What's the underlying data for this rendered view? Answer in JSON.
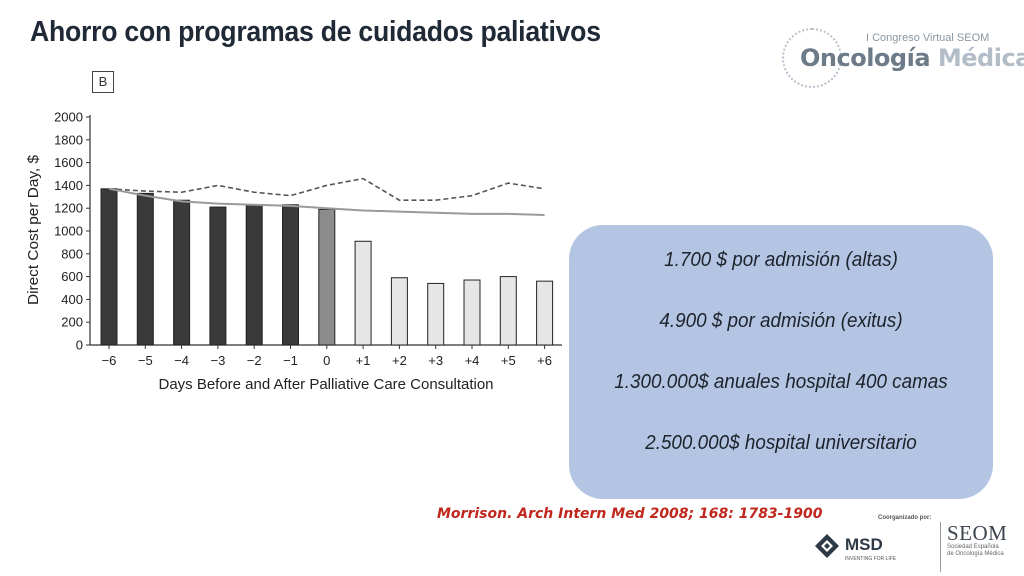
{
  "title": "Ahorro con programas de cuidados paliativos",
  "logo": {
    "top_text": "I Congreso Virtual SEOM",
    "word1": "Oncología",
    "word2": "Médica"
  },
  "panel_label": "B",
  "chart_data": {
    "type": "bar",
    "categories": [
      "−6",
      "−5",
      "−4",
      "−3",
      "−2",
      "−1",
      "0",
      "+1",
      "+2",
      "+3",
      "+4",
      "+5",
      "+6"
    ],
    "values": [
      1370,
      1330,
      1270,
      1210,
      1230,
      1230,
      1190,
      910,
      590,
      540,
      570,
      600,
      560
    ],
    "bar_colors": [
      "#3a3a3a",
      "#3a3a3a",
      "#3a3a3a",
      "#3a3a3a",
      "#3a3a3a",
      "#3a3a3a",
      "#8c8c8c",
      "#e6e6e6",
      "#e6e6e6",
      "#e6e6e6",
      "#e6e6e6",
      "#e6e6e6",
      "#e6e6e6"
    ],
    "series_lines": [
      {
        "style": "dashed",
        "color": "#555555",
        "values": [
          1370,
          1350,
          1340,
          1400,
          1340,
          1310,
          1400,
          1460,
          1270,
          1270,
          1310,
          1420,
          1370
        ]
      },
      {
        "style": "solid",
        "color": "#9a9a9a",
        "values": [
          1370,
          1310,
          1260,
          1240,
          1230,
          1220,
          1200,
          1180,
          1170,
          1160,
          1150,
          1150,
          1140
        ]
      }
    ],
    "xlabel": "Days Before and After Palliative Care Consultation",
    "ylabel": "Direct Cost per Day, $",
    "ylim": [
      0,
      2000
    ],
    "yticks": [
      "0",
      "200",
      "400",
      "600",
      "800",
      "1000",
      "1200",
      "1400",
      "1600",
      "1800",
      "2000"
    ],
    "grid": false
  },
  "callout": {
    "lines": [
      "1.700 $ por admisión (altas)",
      "4.900 $ por  admisión (exitus)",
      "1.300.000$ anuales hospital 400 camas",
      "2.500.000$ hospital universitario"
    ],
    "background": "#b4c5e4"
  },
  "citation": "Morrison. Arch Intern Med 2008; 168: 1783-1900",
  "sponsors": {
    "coorganized": "Coorganizado por:",
    "msd": "MSD",
    "msd_sub": "INVENTING FOR LIFE",
    "seom": "SEOM",
    "seom_sub": "Sociedad Española de Oncología Médica"
  },
  "colors": {
    "title": "#1f2a36",
    "citation": "#c0271d"
  }
}
